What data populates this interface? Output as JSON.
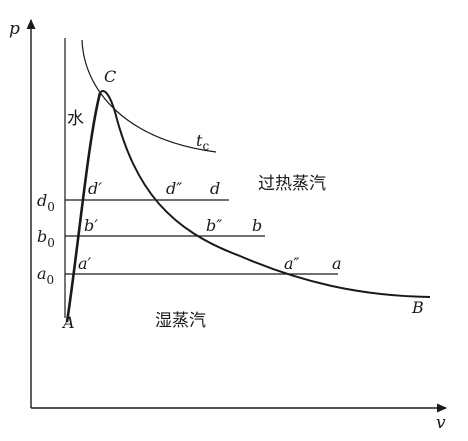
{
  "axes": {
    "y_label": "p",
    "x_label": "v"
  },
  "pressure_ticks": [
    {
      "letter": "d",
      "sub": "0"
    },
    {
      "letter": "b",
      "sub": "0"
    },
    {
      "letter": "a",
      "sub": "0"
    }
  ],
  "points": {
    "critical": "C",
    "start": "A",
    "end": "B",
    "d_prime": "d′",
    "d_double": "d″",
    "d": "d",
    "b_prime": "b′",
    "b_double": "b″",
    "b": "b",
    "a_prime": "a′",
    "a_double": "a″",
    "a": "a"
  },
  "isotherm": {
    "letter": "t",
    "sub": "c"
  },
  "regions": {
    "water": "水",
    "superheated_steam": "过热蒸汽",
    "wet_steam": "湿蒸汽"
  }
}
